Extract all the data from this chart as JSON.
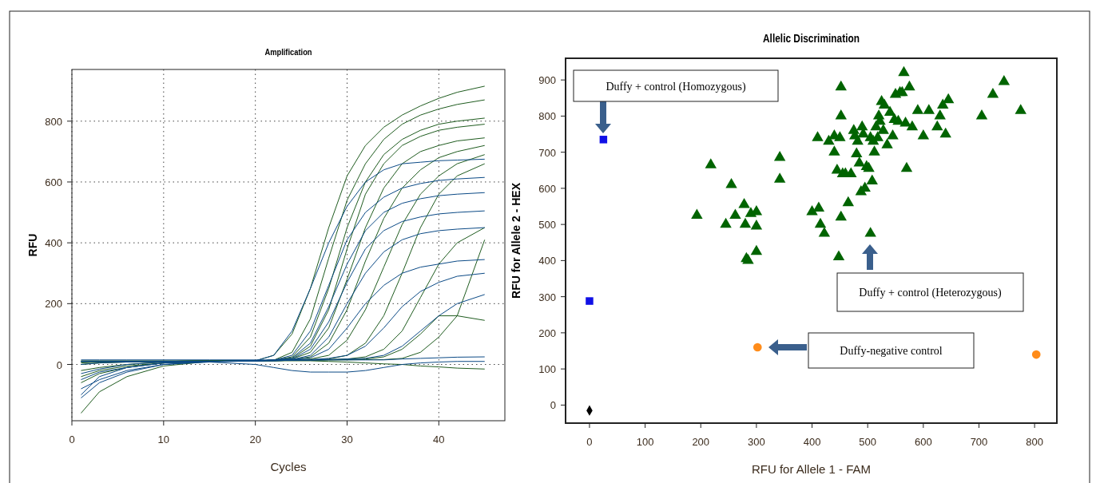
{
  "chart_data": [
    {
      "type": "line",
      "title": "Amplification",
      "xlabel": "Cycles",
      "ylabel": "RFU",
      "xlim": [
        0,
        47.2
      ],
      "ylim": [
        -185,
        970
      ],
      "xticks": [
        0,
        10,
        20,
        30,
        40
      ],
      "yticks": [
        0,
        200,
        400,
        600,
        800
      ],
      "grid": true,
      "x": [
        1,
        3,
        6,
        10,
        15,
        20,
        22,
        24,
        26,
        28,
        30,
        32,
        34,
        36,
        38,
        40,
        42,
        45
      ],
      "series": [
        {
          "color": "#1f5c1f",
          "values": [
            -40,
            -20,
            -5,
            5,
            10,
            12,
            30,
            100,
            250,
            450,
            620,
            720,
            780,
            820,
            850,
            875,
            895,
            915
          ]
        },
        {
          "color": "#1f5c1f",
          "values": [
            -160,
            -90,
            -40,
            -5,
            10,
            12,
            14,
            40,
            150,
            350,
            540,
            660,
            740,
            790,
            820,
            840,
            855,
            870
          ]
        },
        {
          "color": "#1f5c1f",
          "values": [
            -20,
            -10,
            0,
            8,
            10,
            12,
            14,
            25,
            90,
            250,
            450,
            600,
            690,
            740,
            770,
            790,
            800,
            810
          ]
        },
        {
          "color": "#1f5c1f",
          "values": [
            -60,
            -30,
            -10,
            5,
            10,
            12,
            14,
            20,
            60,
            180,
            380,
            560,
            660,
            720,
            750,
            770,
            780,
            790
          ]
        },
        {
          "color": "#1f5c1f",
          "values": [
            10,
            10,
            10,
            10,
            10,
            12,
            14,
            18,
            40,
            120,
            280,
            450,
            580,
            660,
            700,
            720,
            735,
            745
          ]
        },
        {
          "color": "#1f5c1f",
          "values": [
            0,
            5,
            8,
            10,
            10,
            12,
            14,
            16,
            25,
            70,
            180,
            340,
            480,
            580,
            640,
            680,
            700,
            720
          ]
        },
        {
          "color": "#1f5c1f",
          "values": [
            10,
            10,
            10,
            10,
            12,
            12,
            14,
            15,
            18,
            30,
            80,
            180,
            320,
            460,
            560,
            620,
            660,
            690
          ]
        },
        {
          "color": "#1f5c1f",
          "values": [
            10,
            10,
            10,
            10,
            12,
            12,
            14,
            15,
            16,
            18,
            30,
            70,
            160,
            300,
            450,
            560,
            620,
            660
          ]
        },
        {
          "color": "#1f5c1f",
          "values": [
            5,
            8,
            10,
            10,
            12,
            12,
            14,
            14,
            15,
            16,
            18,
            25,
            50,
            110,
            220,
            330,
            400,
            450
          ]
        },
        {
          "color": "#1f5c1f",
          "values": [
            10,
            10,
            10,
            10,
            12,
            12,
            12,
            14,
            14,
            15,
            16,
            18,
            25,
            50,
            100,
            160,
            160,
            145
          ]
        },
        {
          "color": "#1f5c1f",
          "values": [
            10,
            10,
            10,
            10,
            12,
            12,
            12,
            14,
            14,
            15,
            15,
            16,
            16,
            20,
            40,
            90,
            160,
            410
          ]
        },
        {
          "color": "#1f5c1f",
          "values": [
            12,
            12,
            12,
            12,
            12,
            12,
            12,
            12,
            12,
            10,
            8,
            5,
            2,
            0,
            -5,
            -8,
            -12,
            -15
          ]
        },
        {
          "color": "#0b4a86",
          "values": [
            -80,
            -50,
            -20,
            0,
            10,
            12,
            30,
            110,
            250,
            400,
            520,
            600,
            640,
            660,
            665,
            670,
            672,
            675
          ]
        },
        {
          "color": "#0b4a86",
          "values": [
            -110,
            -60,
            -25,
            0,
            8,
            12,
            14,
            30,
            110,
            260,
            410,
            500,
            550,
            580,
            595,
            605,
            610,
            615
          ]
        },
        {
          "color": "#0b4a86",
          "values": [
            -50,
            -25,
            -10,
            5,
            10,
            12,
            14,
            22,
            70,
            190,
            330,
            440,
            500,
            530,
            545,
            555,
            560,
            565
          ]
        },
        {
          "color": "#0b4a86",
          "values": [
            -30,
            -15,
            0,
            8,
            10,
            12,
            14,
            18,
            50,
            140,
            270,
            380,
            440,
            470,
            485,
            495,
            500,
            505
          ]
        },
        {
          "color": "#0b4a86",
          "values": [
            0,
            5,
            8,
            10,
            10,
            12,
            14,
            16,
            30,
            90,
            200,
            300,
            370,
            410,
            430,
            440,
            445,
            450
          ]
        },
        {
          "color": "#0b4a86",
          "values": [
            10,
            10,
            10,
            10,
            10,
            12,
            14,
            16,
            22,
            50,
            120,
            200,
            260,
            300,
            320,
            330,
            340,
            345
          ]
        },
        {
          "color": "#0b4a86",
          "values": [
            10,
            10,
            10,
            10,
            10,
            12,
            12,
            14,
            16,
            20,
            30,
            60,
            120,
            190,
            240,
            270,
            290,
            300
          ]
        },
        {
          "color": "#0b4a86",
          "values": [
            10,
            10,
            10,
            10,
            10,
            12,
            12,
            14,
            14,
            16,
            18,
            20,
            30,
            60,
            110,
            160,
            200,
            230
          ]
        },
        {
          "color": "#0b4a86",
          "values": [
            -100,
            -40,
            -10,
            5,
            8,
            0,
            -10,
            -20,
            -25,
            -25,
            -25,
            -20,
            -10,
            0,
            5,
            8,
            10,
            10
          ]
        },
        {
          "color": "#0b4a86",
          "values": [
            15,
            15,
            15,
            15,
            15,
            15,
            15,
            15,
            15,
            15,
            15,
            15,
            15,
            18,
            20,
            22,
            24,
            25
          ]
        }
      ]
    },
    {
      "type": "scatter",
      "title": "Allelic Discrimination",
      "xlabel": "RFU for Allele 1 - FAM",
      "ylabel": "RFU for Allele 2 - HEX",
      "xlim": [
        -43,
        840
      ],
      "ylim": [
        -50,
        960
      ],
      "xticks": [
        0,
        100,
        200,
        300,
        400,
        500,
        600,
        700,
        800
      ],
      "yticks": [
        0,
        100,
        200,
        300,
        400,
        500,
        600,
        700,
        800,
        900
      ],
      "series": [
        {
          "color": "#1010e6",
          "marker": "square",
          "x": [
            25,
            0
          ],
          "values": [
            735,
            288
          ]
        },
        {
          "color": "#000000",
          "marker": "diamond",
          "x": [
            0
          ],
          "values": [
            -15
          ]
        },
        {
          "color": "#ff8c1a",
          "marker": "circle",
          "x": [
            302,
            803
          ],
          "values": [
            160,
            140
          ]
        },
        {
          "color": "#006400",
          "marker": "triangle",
          "x": [
            193,
            218,
            245,
            255,
            262,
            278,
            280,
            282,
            285,
            290,
            300,
            300,
            300,
            342,
            342,
            400,
            410,
            412,
            415,
            422,
            430,
            440,
            440,
            445,
            448,
            450,
            452,
            452,
            452,
            455,
            460,
            465,
            470,
            475,
            477,
            480,
            482,
            485,
            488,
            490,
            492,
            495,
            498,
            502,
            505,
            508,
            510,
            512,
            515,
            518,
            520,
            522,
            525,
            528,
            530,
            535,
            540,
            545,
            548,
            555,
            558,
            562,
            565,
            568,
            570,
            575,
            580,
            590,
            600,
            610,
            625,
            630,
            640,
            645,
            705,
            725,
            745,
            775,
            635,
            550,
            505
          ],
          "values": [
            525,
            665,
            500,
            610,
            525,
            555,
            500,
            405,
            400,
            530,
            535,
            495,
            425,
            685,
            625,
            535,
            740,
            545,
            500,
            475,
            730,
            745,
            700,
            650,
            410,
            740,
            880,
            800,
            520,
            640,
            640,
            560,
            640,
            760,
            745,
            695,
            730,
            670,
            590,
            770,
            750,
            600,
            660,
            655,
            475,
            620,
            730,
            700,
            770,
            740,
            800,
            785,
            840,
            760,
            830,
            720,
            810,
            745,
            790,
            785,
            865,
            865,
            920,
            780,
            655,
            880,
            770,
            815,
            745,
            815,
            770,
            800,
            750,
            845,
            800,
            860,
            895,
            815,
            830,
            860,
            740
          ]
        }
      ],
      "annotations": [
        "Duffy + control (Homozygous)",
        "Duffy + control (Heterozygous)",
        "Duffy-negative control"
      ]
    }
  ]
}
